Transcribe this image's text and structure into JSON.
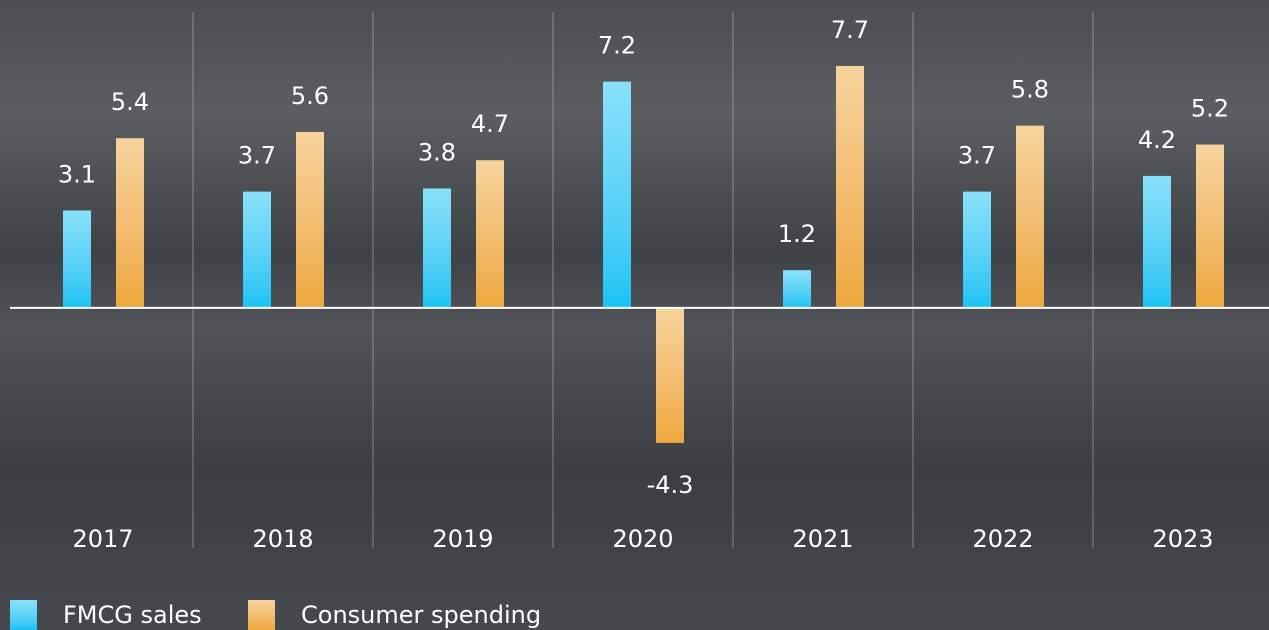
{
  "chart_data": {
    "type": "bar",
    "categories": [
      "2017",
      "2018",
      "2019",
      "2020",
      "2021",
      "2022",
      "2023"
    ],
    "series": [
      {
        "name": "FMCG sales",
        "color": "#12c3f4",
        "values": [
          3.1,
          3.7,
          3.8,
          7.2,
          1.2,
          3.7,
          4.2
        ]
      },
      {
        "name": "Consumer spending",
        "color": "#eea83c",
        "values": [
          5.4,
          5.6,
          4.7,
          -4.3,
          7.7,
          5.8,
          5.2
        ]
      }
    ],
    "ylim": [
      -10,
      9.8
    ]
  }
}
